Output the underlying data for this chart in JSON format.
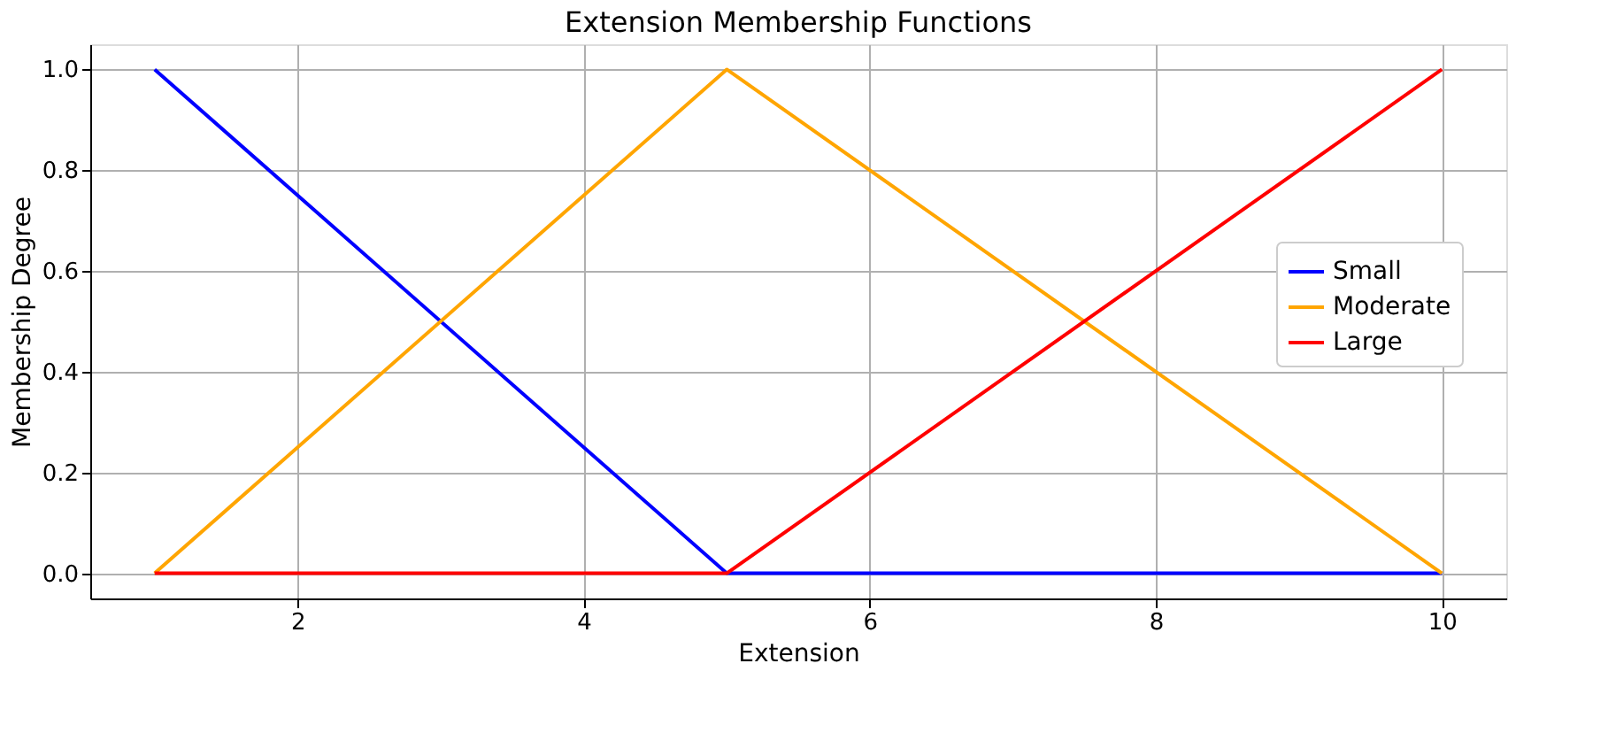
{
  "chart_data": {
    "type": "line",
    "title": "Extension Membership Functions",
    "xlabel": "Extension",
    "ylabel": "Membership Degree",
    "x": [
      1,
      5,
      10
    ],
    "series": [
      {
        "name": "Small",
        "color": "#0000ff",
        "values": [
          1.0,
          0.0,
          0.0
        ]
      },
      {
        "name": "Moderate",
        "color": "#ffa500",
        "values": [
          0.0,
          1.0,
          0.0
        ]
      },
      {
        "name": "Large",
        "color": "#ff0000",
        "values": [
          0.0,
          0.0,
          1.0
        ]
      }
    ],
    "xlim": [
      0.55,
      10.45
    ],
    "xticks": [
      2,
      4,
      6,
      8,
      10
    ],
    "ylim": [
      -0.05,
      1.05
    ],
    "yticks": [
      {
        "value": 0,
        "label": "0.0"
      },
      {
        "value": 0.2,
        "label": "0.2"
      },
      {
        "value": 0.4,
        "label": "0.4"
      },
      {
        "value": 0.6,
        "label": "0.6"
      },
      {
        "value": 0.8,
        "label": "0.8"
      },
      {
        "value": 1.0,
        "label": "1.0"
      }
    ],
    "grid": true,
    "legend": "center right",
    "marker": "none",
    "line_style": "solid"
  }
}
